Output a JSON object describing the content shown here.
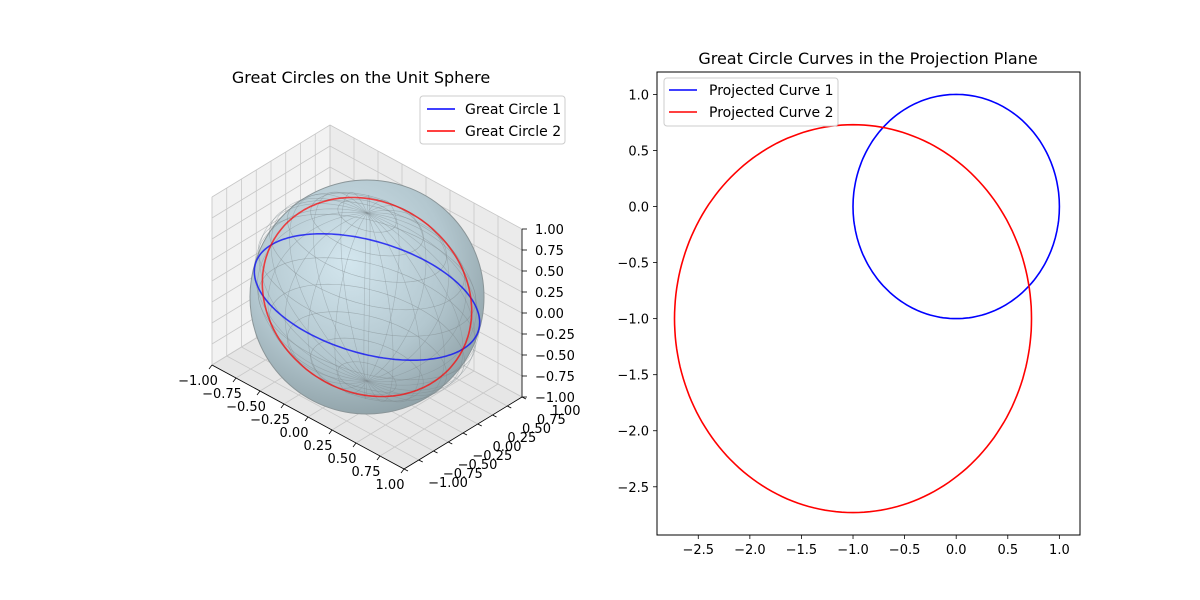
{
  "chart_data": [
    {
      "type": "line",
      "projection": "3d",
      "title": "Great Circles on the Unit Sphere",
      "xlim": [
        -1,
        1
      ],
      "ylim": [
        -1,
        1
      ],
      "zlim": [
        -1,
        1
      ],
      "ticks": [
        -1.0,
        -0.75,
        -0.5,
        -0.25,
        0.0,
        0.25,
        0.5,
        0.75,
        1.0
      ],
      "tick_labels": [
        "−1.00",
        "−0.75",
        "−0.50",
        "−0.25",
        "0.00",
        "0.25",
        "0.50",
        "0.75",
        "1.00"
      ],
      "grid": true,
      "surface": {
        "shape": "unit sphere",
        "color": "#add8e6",
        "edgecolor": "#808080"
      },
      "legend_position": "top-right",
      "series": [
        {
          "name": "Great Circle 1",
          "color": "#0000ff",
          "circle": "equator (z = 0)"
        },
        {
          "name": "Great Circle 2",
          "color": "#ff0000",
          "circle": "tilted 45° about the x-axis"
        }
      ]
    },
    {
      "type": "line",
      "title": "Great Circle Curves in the Projection Plane",
      "xlim": [
        -2.9,
        1.2
      ],
      "ylim": [
        -2.93,
        1.2
      ],
      "xticks": [
        -2.5,
        -2.0,
        -1.5,
        -1.0,
        -0.5,
        0.0,
        0.5,
        1.0
      ],
      "xtick_labels": [
        "−2.5",
        "−2.0",
        "−1.5",
        "−1.0",
        "−0.5",
        "0.0",
        "0.5",
        "1.0"
      ],
      "yticks": [
        -2.5,
        -2.0,
        -1.5,
        -1.0,
        -0.5,
        0.0,
        0.5,
        1.0
      ],
      "ytick_labels": [
        "−2.5",
        "−2.0",
        "−1.5",
        "−1.0",
        "−0.5",
        "0.0",
        "0.5",
        "1.0"
      ],
      "grid": false,
      "legend_position": "top-left",
      "series": [
        {
          "name": "Projected Curve 1",
          "color": "#0000ff",
          "center": [
            0.0,
            0.0
          ],
          "radius": 1.0
        },
        {
          "name": "Projected Curve 2",
          "color": "#ff0000",
          "center": [
            -1.0,
            -1.0
          ],
          "radius": 1.73
        }
      ]
    }
  ]
}
